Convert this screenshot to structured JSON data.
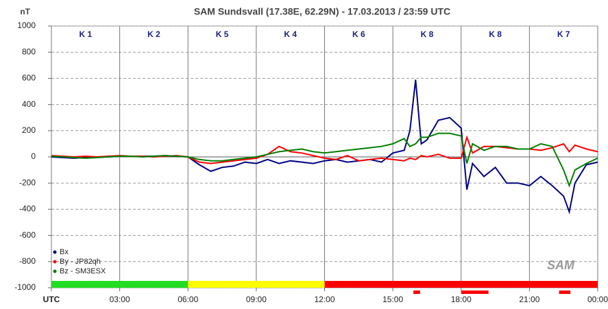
{
  "chart_data": {
    "type": "line",
    "title": "SAM Sundsvall (17.38E, 62.29N) - 17.03.2013 / 23:59  UTC",
    "y_label": "nT",
    "logo": "SAM",
    "x": [
      0,
      0.5,
      1,
      1.5,
      2,
      2.5,
      3,
      3.5,
      4,
      4.5,
      5,
      5.5,
      6,
      6.5,
      7,
      7.5,
      8,
      8.5,
      9,
      9.5,
      10,
      10.5,
      11,
      11.5,
      12,
      12.5,
      13,
      13.5,
      14,
      14.5,
      15,
      15.5,
      15.75,
      16,
      16.25,
      16.5,
      17,
      17.5,
      18,
      18.25,
      18.5,
      19,
      19.5,
      20,
      20.5,
      21,
      21.5,
      22,
      22.5,
      22.75,
      23,
      23.5,
      24
    ],
    "series": [
      {
        "name": "Bx",
        "color": "#000080",
        "values": [
          0,
          -5,
          -10,
          -5,
          0,
          0,
          5,
          5,
          5,
          5,
          10,
          5,
          0,
          -60,
          -110,
          -80,
          -70,
          -40,
          -50,
          -20,
          -50,
          -30,
          -40,
          -50,
          -30,
          -20,
          -40,
          -30,
          -20,
          -40,
          30,
          50,
          200,
          590,
          100,
          130,
          280,
          300,
          220,
          -250,
          -50,
          -150,
          -80,
          -200,
          -200,
          -220,
          -150,
          -220,
          -300,
          -420,
          -200,
          -60,
          -40
        ]
      },
      {
        "name": "By  -  JP82qh",
        "color": "#ff0000",
        "values": [
          10,
          5,
          0,
          5,
          0,
          5,
          10,
          5,
          5,
          0,
          5,
          10,
          0,
          -40,
          -50,
          -40,
          -30,
          -20,
          -10,
          20,
          80,
          40,
          30,
          10,
          -10,
          -20,
          10,
          -30,
          -20,
          -10,
          -20,
          -30,
          -10,
          -20,
          10,
          0,
          20,
          -10,
          -10,
          150,
          30,
          80,
          80,
          70,
          60,
          60,
          50,
          70,
          100,
          40,
          90,
          60,
          40
        ]
      },
      {
        "name": "Bz  -  SM3ESX",
        "color": "#008000",
        "values": [
          5,
          0,
          -5,
          -10,
          -5,
          0,
          5,
          5,
          0,
          5,
          10,
          5,
          0,
          -20,
          -30,
          -30,
          -20,
          -10,
          0,
          20,
          40,
          50,
          60,
          40,
          30,
          40,
          50,
          60,
          70,
          80,
          100,
          140,
          80,
          100,
          150,
          150,
          180,
          180,
          160,
          -50,
          100,
          50,
          80,
          80,
          60,
          60,
          100,
          80,
          -100,
          -220,
          -100,
          -50,
          -10
        ]
      }
    ],
    "k_indices": [
      "K 1",
      "K 2",
      "K 5",
      "K 4",
      "K 6",
      "K 8",
      "K 8",
      "K 7"
    ],
    "activity_bands": [
      {
        "start": 0,
        "end": 6,
        "color": "#22dd22"
      },
      {
        "start": 6,
        "end": 12,
        "color": "#ffff00"
      },
      {
        "start": 12,
        "end": 24,
        "color": "#ff0000"
      }
    ],
    "alerts": [
      [
        15.9,
        16.2
      ],
      [
        18,
        19.2
      ],
      [
        22.3,
        22.8
      ]
    ],
    "xlim": [
      0,
      24
    ],
    "xticks": [
      {
        "value": 0,
        "label": "UTC"
      },
      {
        "value": 3,
        "label": "03:00"
      },
      {
        "value": 6,
        "label": "06:00"
      },
      {
        "value": 9,
        "label": "09:00"
      },
      {
        "value": 12,
        "label": "12:00"
      },
      {
        "value": 15,
        "label": "15:00"
      },
      {
        "value": 18,
        "label": "18:00"
      },
      {
        "value": 21,
        "label": "21:00"
      },
      {
        "value": 24,
        "label": "00:00"
      }
    ],
    "ylim": [
      -1000,
      1000
    ],
    "yticks": [
      -1000,
      -800,
      -600,
      -400,
      -200,
      0,
      200,
      400,
      600,
      800,
      1000
    ],
    "grid": true,
    "legend": "lower left"
  }
}
